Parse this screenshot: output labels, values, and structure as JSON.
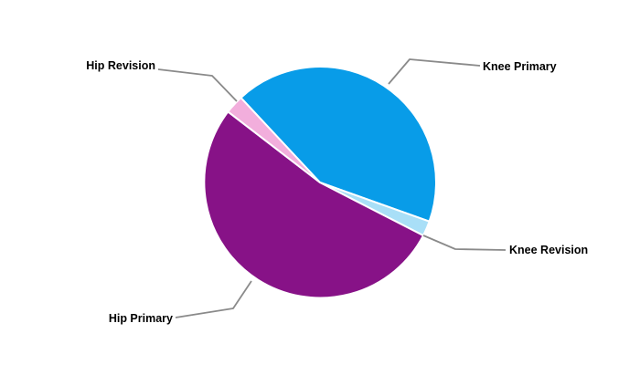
{
  "page": {
    "background": "#ffffff"
  },
  "chart_data": {
    "type": "pie",
    "title": "",
    "slices": [
      {
        "id": "knee-primary",
        "label": "Knee Primary",
        "value": 42.4,
        "color": "#089CE8"
      },
      {
        "id": "knee-revision",
        "label": "Knee Revision",
        "value": 2.1,
        "color": "#A9DFF7"
      },
      {
        "id": "hip-primary",
        "label": "Hip Primary",
        "value": 52.9,
        "color": "#871287"
      },
      {
        "id": "hip-revision",
        "label": "Hip Revision",
        "value": 2.6,
        "color": "#F2AEDC"
      }
    ],
    "start_angle_deg": -43,
    "slice_order": "clockwise",
    "separator_color": "#ffffff",
    "leader_line_color": "#8A8A8A",
    "label_color": "#000000",
    "legend_position": "none",
    "labels_style": "external-with-leader-lines",
    "background": "#ffffff"
  }
}
